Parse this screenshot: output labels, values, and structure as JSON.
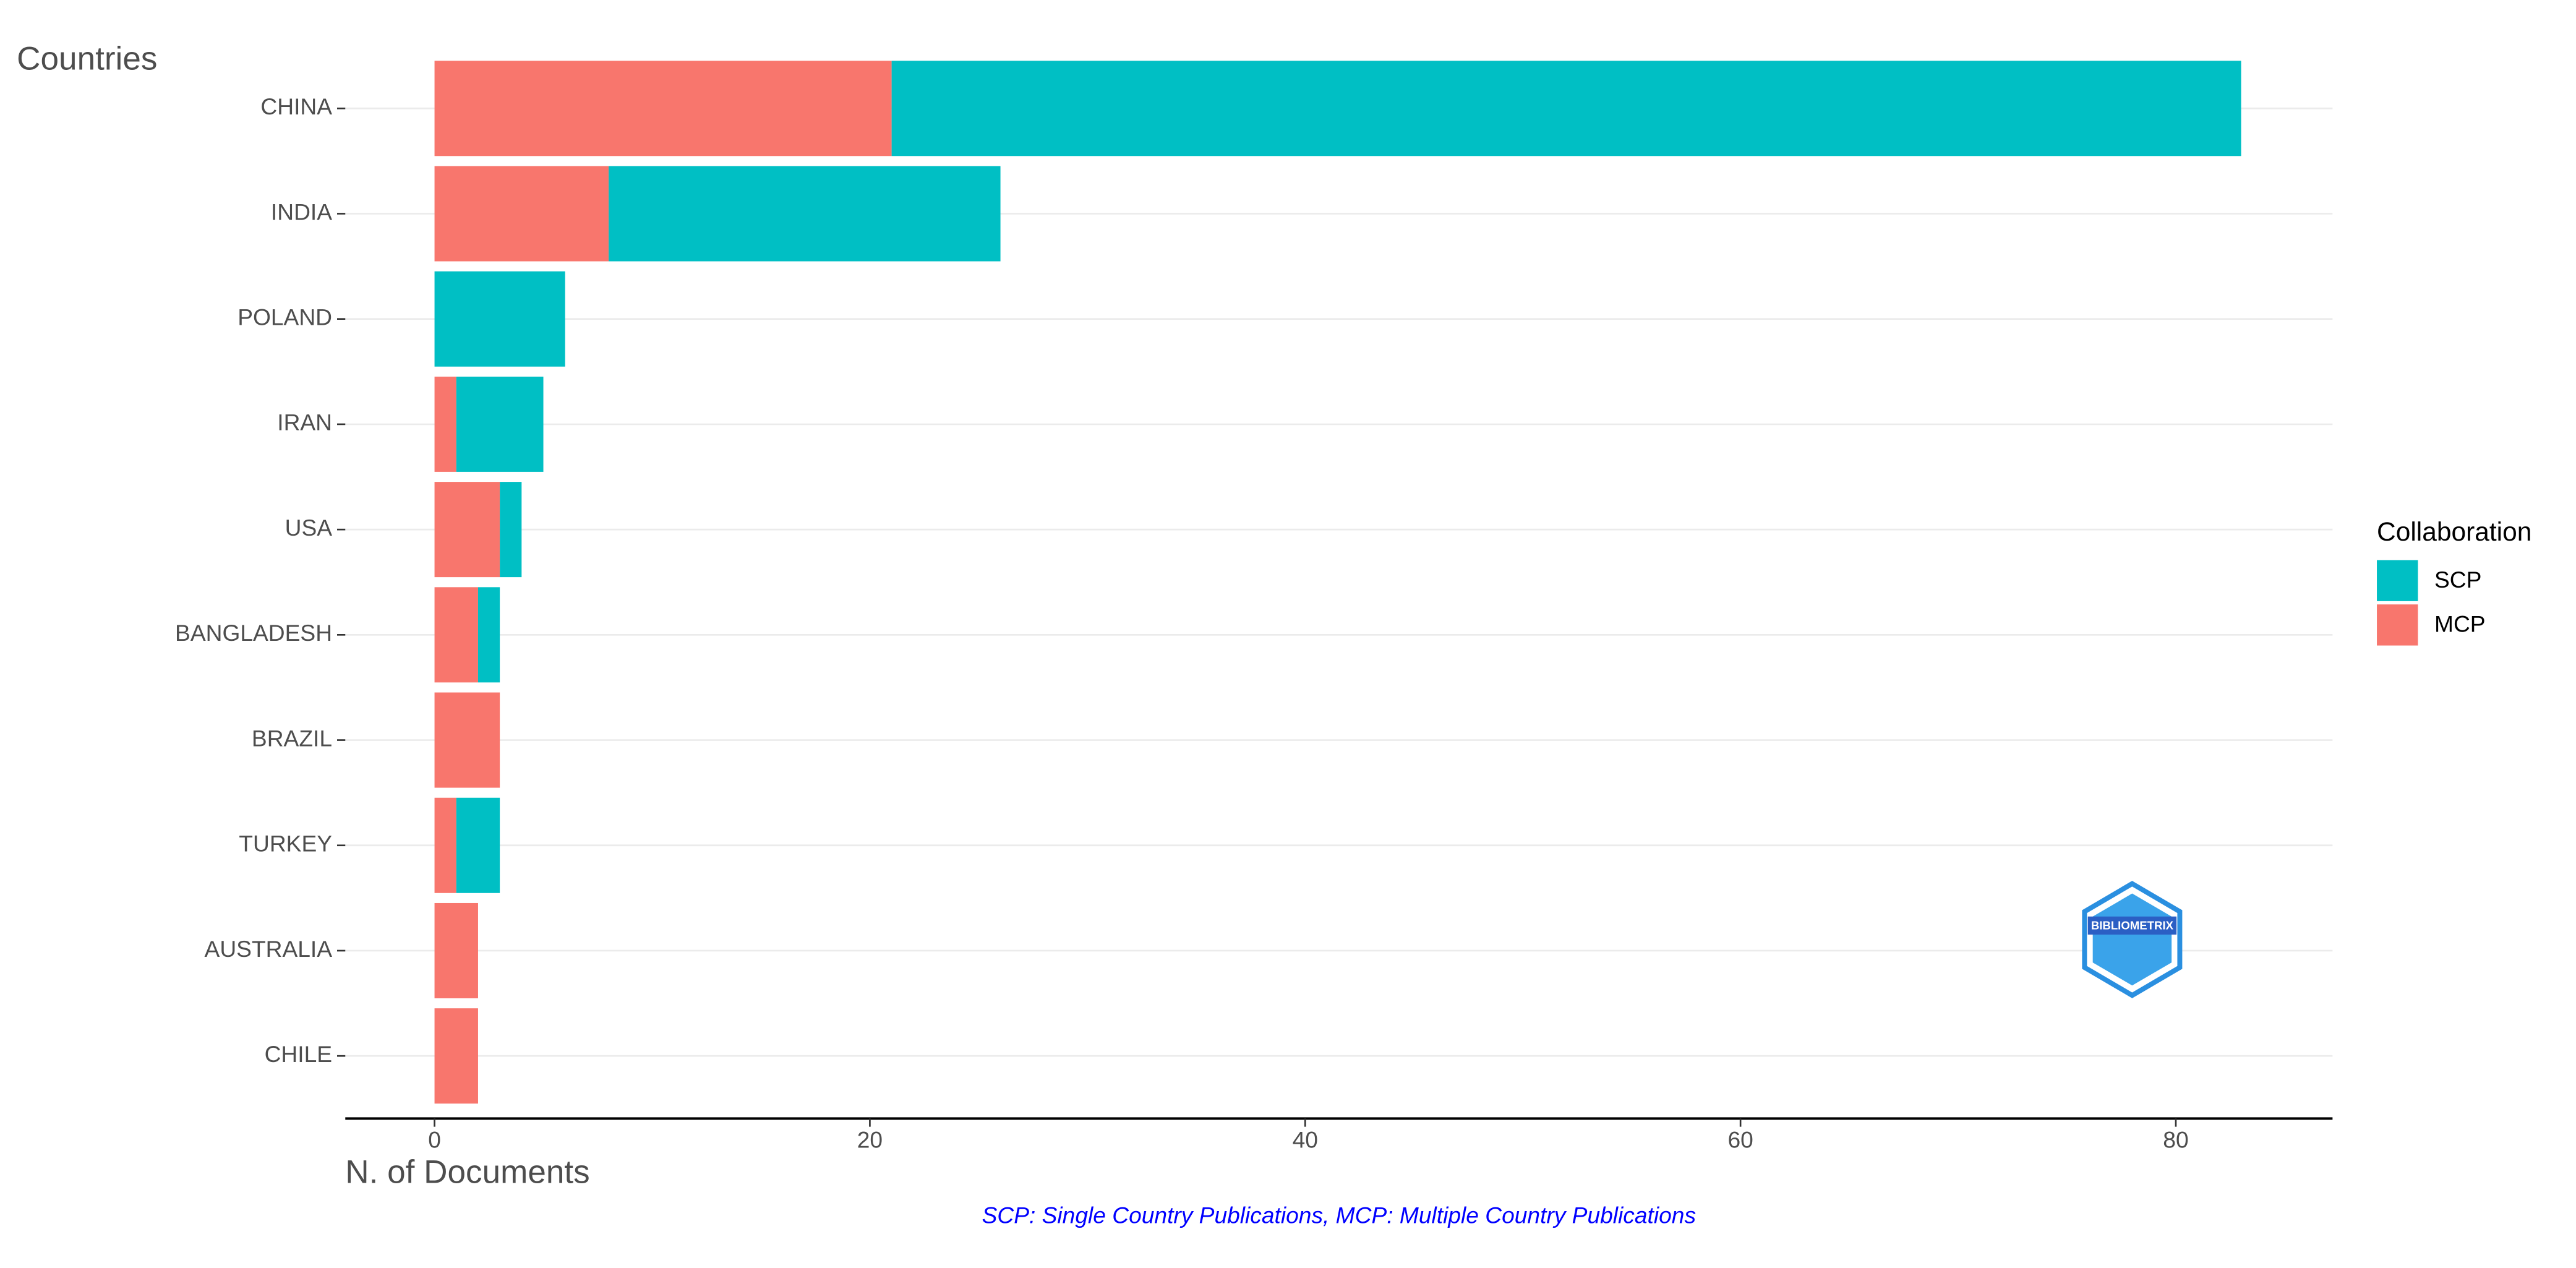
{
  "chart_data": {
    "type": "stacked_barh",
    "y_axis_title": "Countries",
    "x_axis_title": "N. of Documents",
    "caption": "SCP: Single Country Publications, MCP: Multiple Country Publications",
    "legend_title": "Collaboration",
    "legend_position": "right",
    "watermark": "BIBLIOMETRIX",
    "categories": [
      "CHINA",
      "INDIA",
      "POLAND",
      "IRAN",
      "USA",
      "BANGLADESH",
      "BRAZIL",
      "TURKEY",
      "AUSTRALIA",
      "CHILE"
    ],
    "series": [
      {
        "name": "SCP",
        "color": "#00BFC4",
        "values": [
          62,
          18,
          6,
          4,
          1,
          1,
          0,
          2,
          0,
          0
        ]
      },
      {
        "name": "MCP",
        "color": "#F8766D",
        "values": [
          21,
          8,
          0,
          1,
          3,
          2,
          3,
          1,
          2,
          2
        ]
      }
    ],
    "xlim": [
      -4.1,
      87.2
    ],
    "xticks": [
      0,
      20,
      40,
      60,
      80
    ],
    "grid": true
  }
}
